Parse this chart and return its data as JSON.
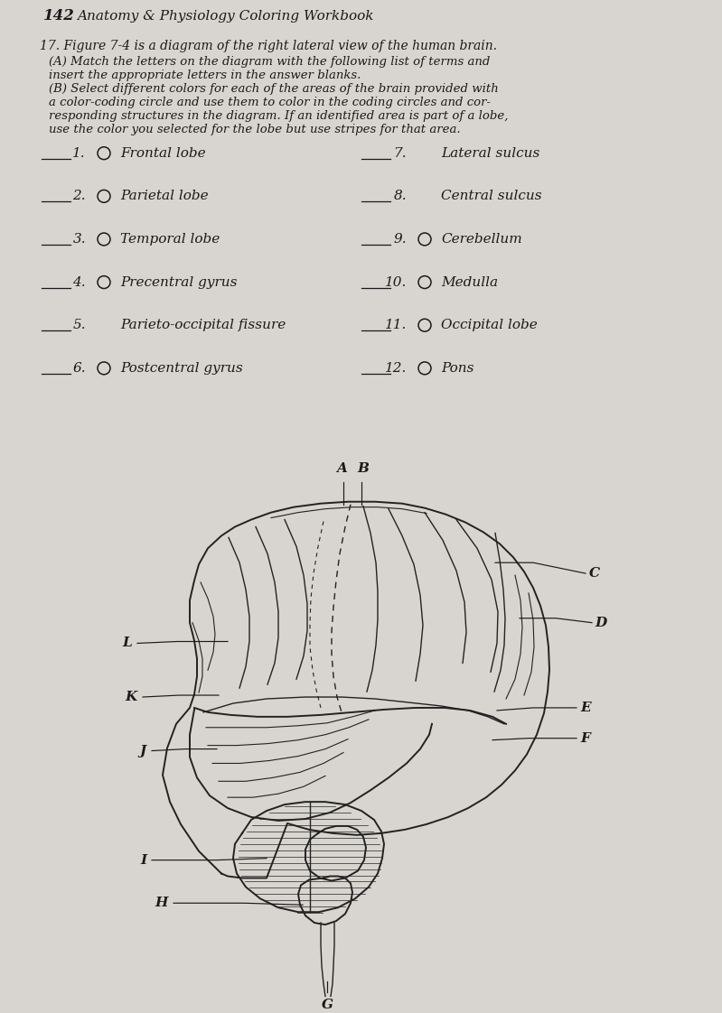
{
  "page_number": "142",
  "header": "Anatomy & Physiology Coloring Workbook",
  "instr_title": "17. Figure 7-4 is a diagram of the right lateral view of the human brain.",
  "instr_A1": "    (A) Match the letters on the diagram with the following list of terms and",
  "instr_A2": "    insert the appropriate letters in the answer blanks.",
  "instr_B1": "    (B) Select different colors for each of the areas of the brain provided with",
  "instr_B2": "    a color-coding circle and use them to color in the coding circles and cor-",
  "instr_B3": "    responding structures in the diagram. If an identified area is part of a lobe,",
  "instr_B4": "    use the color you selected for the lobe but use stripes for that area.",
  "left_items": [
    {
      "num": "1.",
      "has_circle": true,
      "label": "Frontal lobe"
    },
    {
      "num": "2.",
      "has_circle": true,
      "label": "Parietal lobe"
    },
    {
      "num": "3.",
      "has_circle": true,
      "label": "Temporal lobe"
    },
    {
      "num": "4.",
      "has_circle": true,
      "label": "Precentral gyrus"
    },
    {
      "num": "5.",
      "has_circle": false,
      "label": "Parieto-occipital fissure"
    },
    {
      "num": "6.",
      "has_circle": true,
      "label": "Postcentral gyrus"
    }
  ],
  "right_items": [
    {
      "num": "7.",
      "has_circle": false,
      "label": "Lateral sulcus"
    },
    {
      "num": "8.",
      "has_circle": false,
      "label": "Central sulcus"
    },
    {
      "num": "9.",
      "has_circle": true,
      "label": "Cerebellum"
    },
    {
      "num": "10.",
      "has_circle": true,
      "label": "Medulla"
    },
    {
      "num": "11.",
      "has_circle": true,
      "label": "Occipital lobe"
    },
    {
      "num": "12.",
      "has_circle": true,
      "label": "Pons"
    }
  ],
  "bg_color": "#d8d5d0",
  "text_color": "#1a1a1a",
  "brain_color": "#222222"
}
